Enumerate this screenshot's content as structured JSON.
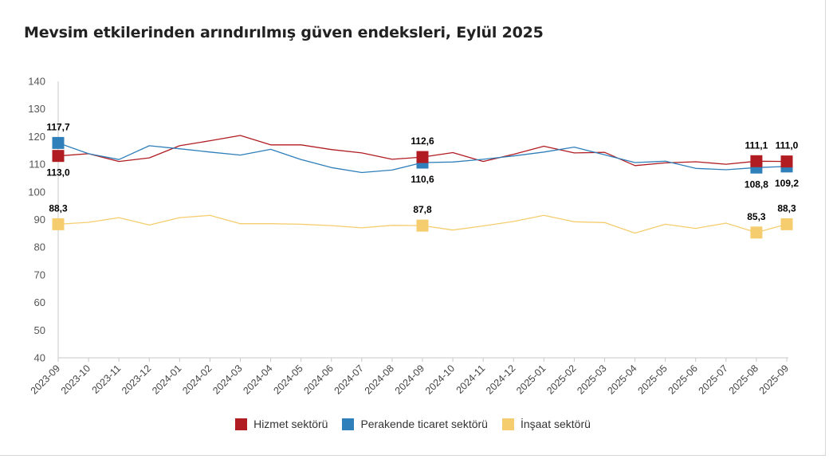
{
  "title": "Mevsim etkilerinden arındırılmış güven endeksleri, Eylül 2025",
  "colors": {
    "hizmet": "#b01c21",
    "perakende": "#2f7fba",
    "insaat": "#f5cd6e"
  },
  "chart_data": {
    "type": "line",
    "title": "Mevsim etkilerinden arındırılmış güven endeksleri, Eylül 2025",
    "xlabel": "",
    "ylabel": "",
    "ylim": [
      40,
      140
    ],
    "yticks": [
      "40",
      "50",
      "60",
      "70",
      "80",
      "90",
      "100",
      "110",
      "120",
      "130",
      "140"
    ],
    "grid": false,
    "legend_position": "bottom",
    "categories": [
      "2023-09",
      "2023-10",
      "2023-11",
      "2023-12",
      "2024-01",
      "2024-02",
      "2024-03",
      "2024-04",
      "2024-05",
      "2024-06",
      "2024-07",
      "2024-08",
      "2024-09",
      "2024-10",
      "2024-11",
      "2024-12",
      "2025-01",
      "2025-02",
      "2025-03",
      "2025-04",
      "2025-05",
      "2025-06",
      "2025-07",
      "2025-08",
      "2025-09"
    ],
    "series": [
      {
        "name": "Hizmet sektörü",
        "color_key": "hizmet",
        "values": [
          113.0,
          113.8,
          111.0,
          112.3,
          116.7,
          118.5,
          120.4,
          117.0,
          117.0,
          115.3,
          114.1,
          111.8,
          112.6,
          114.2,
          111.0,
          113.6,
          116.5,
          114.1,
          114.3,
          109.5,
          110.5,
          110.9,
          110.0,
          111.1,
          111.0
        ],
        "labels": [
          {
            "index": 0,
            "text": "113,0",
            "pos": "below"
          },
          {
            "index": 12,
            "text": "112,6",
            "pos": "above"
          },
          {
            "index": 23,
            "text": "111,1",
            "pos": "above"
          },
          {
            "index": 24,
            "text": "111,0",
            "pos": "above"
          }
        ]
      },
      {
        "name": "Perakende ticaret sektörü",
        "color_key": "perakende",
        "values": [
          117.7,
          113.8,
          111.7,
          116.7,
          115.6,
          114.4,
          113.3,
          115.4,
          111.7,
          108.8,
          107.0,
          107.9,
          110.6,
          110.8,
          111.8,
          113.0,
          114.4,
          116.2,
          113.4,
          110.6,
          111.1,
          108.5,
          108.0,
          108.8,
          109.2
        ],
        "labels": [
          {
            "index": 0,
            "text": "117,7",
            "pos": "above"
          },
          {
            "index": 12,
            "text": "110,6",
            "pos": "below"
          },
          {
            "index": 23,
            "text": "108,8",
            "pos": "below"
          },
          {
            "index": 24,
            "text": "109,2",
            "pos": "below"
          }
        ]
      },
      {
        "name": "İnşaat sektörü",
        "color_key": "insaat",
        "values": [
          88.3,
          89.0,
          90.7,
          88.0,
          90.7,
          91.5,
          88.5,
          88.5,
          88.3,
          87.8,
          87.0,
          87.9,
          87.8,
          86.2,
          87.7,
          89.3,
          91.5,
          89.2,
          88.9,
          85.1,
          88.3,
          86.8,
          88.7,
          85.3,
          88.3
        ],
        "labels": [
          {
            "index": 0,
            "text": "88,3",
            "pos": "above"
          },
          {
            "index": 12,
            "text": "87,8",
            "pos": "above"
          },
          {
            "index": 23,
            "text": "85,3",
            "pos": "above"
          },
          {
            "index": 24,
            "text": "88,3",
            "pos": "above"
          }
        ]
      }
    ]
  },
  "legend": [
    {
      "label": "Hizmet sektörü",
      "color_key": "hizmet"
    },
    {
      "label": "Perakende ticaret sektörü",
      "color_key": "perakende"
    },
    {
      "label": "İnşaat sektörü",
      "color_key": "insaat"
    }
  ]
}
